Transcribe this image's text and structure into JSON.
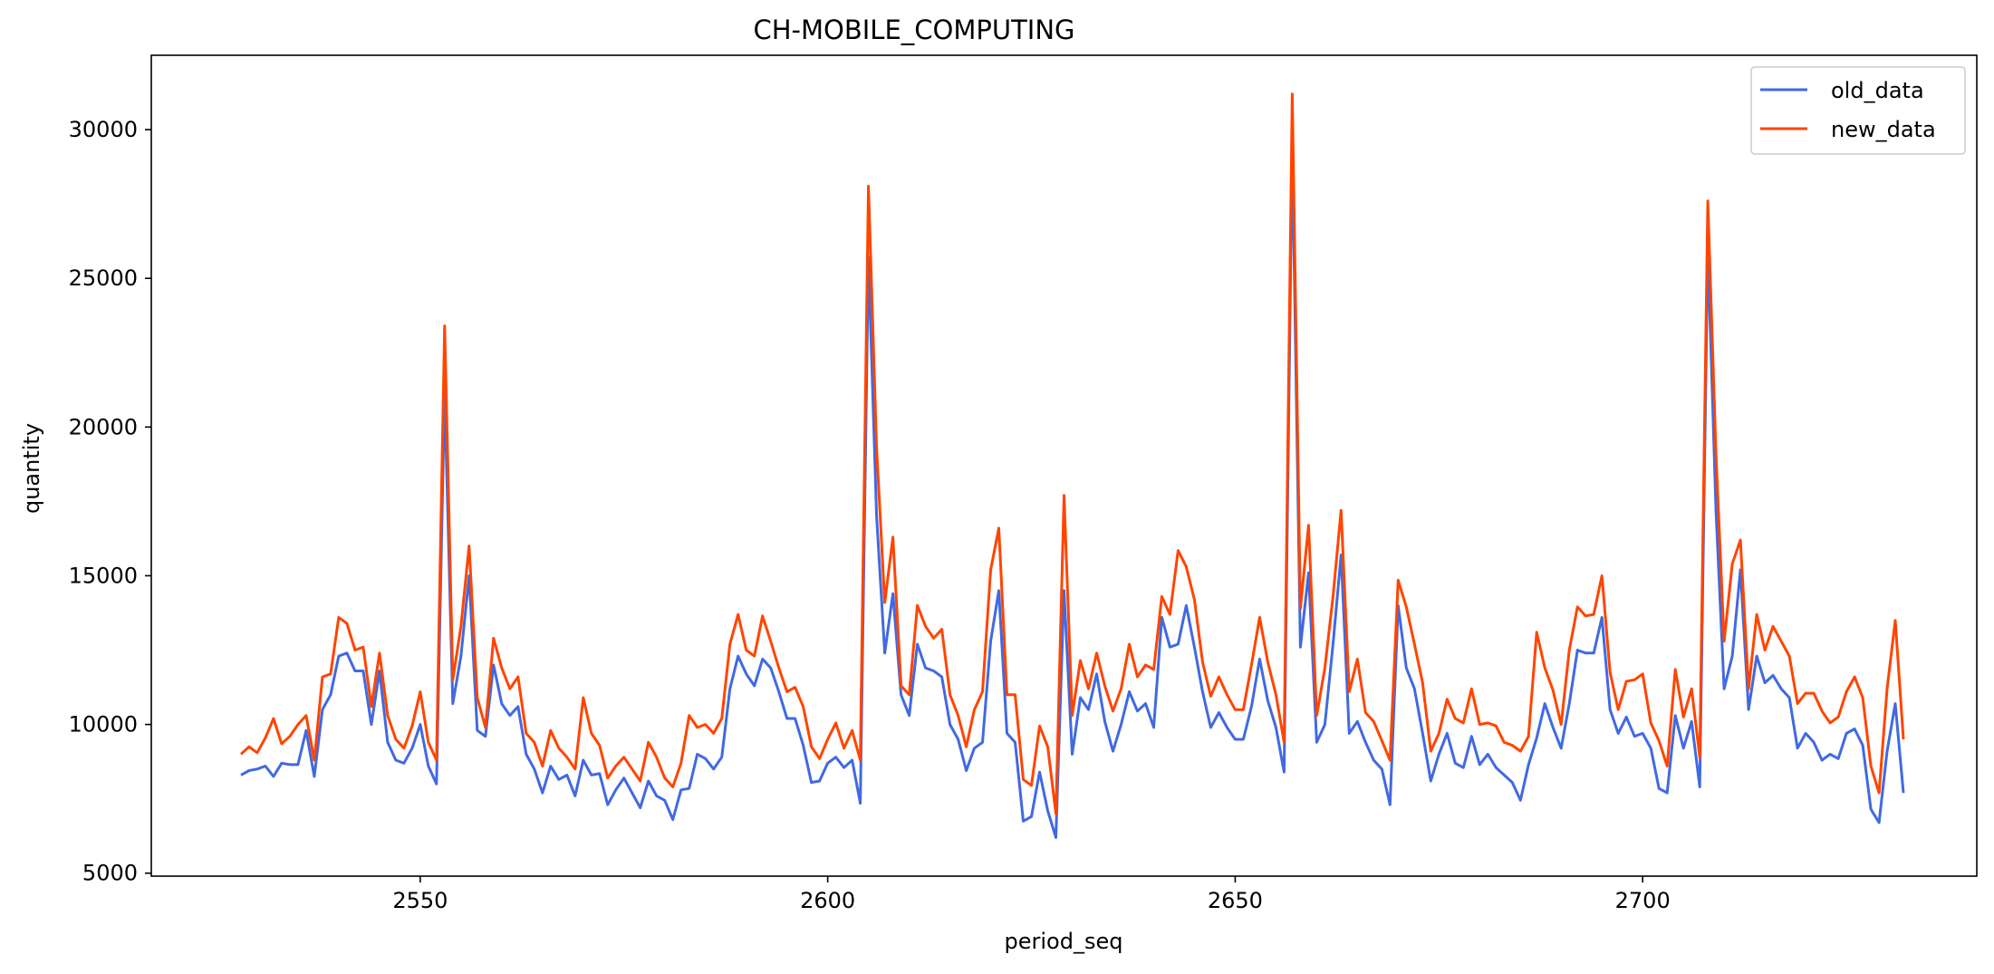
{
  "chart_data": {
    "type": "line",
    "title": "CH-MOBILE_COMPUTING",
    "xlabel": "period_seq",
    "ylabel": "quantity",
    "xlim": [
      2517,
      2741
    ],
    "ylim": [
      4900,
      32500
    ],
    "xticks": [
      2550,
      2600,
      2650,
      2700
    ],
    "yticks": [
      5000,
      10000,
      15000,
      20000,
      25000,
      30000
    ],
    "legend_position": "top-right",
    "grid": false,
    "x_start": 2528,
    "series": [
      {
        "name": "old_data",
        "color": "#4169e1",
        "values": [
          8300,
          8450,
          8500,
          8600,
          8250,
          8700,
          8650,
          8650,
          9800,
          8250,
          10500,
          11000,
          12300,
          12400,
          11800,
          11800,
          10000,
          11800,
          9400,
          8800,
          8700,
          9200,
          10000,
          8600,
          8000,
          21200,
          10700,
          12300,
          15000,
          9800,
          9600,
          12000,
          10700,
          10300,
          10600,
          9000,
          8500,
          7700,
          8600,
          8150,
          8300,
          7600,
          8800,
          8300,
          8350,
          7300,
          7800,
          8200,
          7700,
          7200,
          8100,
          7600,
          7450,
          6800,
          7800,
          7850,
          9000,
          8850,
          8500,
          8900,
          11200,
          12300,
          11700,
          11300,
          12200,
          11900,
          11100,
          10200,
          10200,
          9300,
          8050,
          8100,
          8700,
          8900,
          8550,
          8800,
          7350,
          25700,
          17000,
          12400,
          14400,
          11000,
          10300,
          12700,
          11900,
          11800,
          11600,
          10000,
          9500,
          8450,
          9200,
          9400,
          12800,
          14500,
          9700,
          9400,
          6750,
          6900,
          8400,
          7100,
          6200,
          14500,
          9000,
          10900,
          10500,
          11700,
          10100,
          9100,
          10000,
          11100,
          10450,
          10700,
          9900,
          13600,
          12600,
          12700,
          14000,
          12600,
          11100,
          9900,
          10400,
          9900,
          9500,
          9500,
          10600,
          12200,
          10800,
          9900,
          8400,
          29500,
          12600,
          15100,
          9400,
          10000,
          12700,
          15700,
          9700,
          10100,
          9400,
          8800,
          8500,
          7300,
          14000,
          11900,
          11200,
          9700,
          8100,
          9000,
          9700,
          8700,
          8550,
          9600,
          8650,
          9000,
          8550,
          8300,
          8050,
          7450,
          8650,
          9550,
          10700,
          9900,
          9200,
          10700,
          12500,
          12400,
          12400,
          13600,
          10500,
          9700,
          10250,
          9600,
          9700,
          9200,
          7850,
          7700,
          10300,
          9200,
          10100,
          7900,
          26000,
          17200,
          11200,
          12300,
          15200,
          10500,
          12300,
          11400,
          11650,
          11200,
          10900,
          9200,
          9700,
          9400,
          8800,
          9000,
          8850,
          9700,
          9850,
          9300,
          7150,
          6700,
          9100,
          10700,
          7700
        ]
      },
      {
        "name": "new_data",
        "color": "#ff4500",
        "values": [
          9000,
          9250,
          9050,
          9550,
          10200,
          9350,
          9600,
          10000,
          10300,
          8800,
          11600,
          11700,
          13600,
          13400,
          12500,
          12600,
          10600,
          12400,
          10300,
          9500,
          9200,
          9950,
          11100,
          9400,
          8800,
          23400,
          11500,
          13300,
          16000,
          10900,
          9900,
          12900,
          11900,
          11200,
          11600,
          9700,
          9400,
          8600,
          9800,
          9200,
          8900,
          8500,
          10900,
          9700,
          9300,
          8200,
          8600,
          8900,
          8500,
          8100,
          9400,
          8900,
          8200,
          7900,
          8700,
          10300,
          9900,
          10000,
          9700,
          10200,
          12700,
          13700,
          12500,
          12300,
          13650,
          12800,
          11900,
          11100,
          11250,
          10600,
          9250,
          8850,
          9500,
          10050,
          9200,
          9800,
          8800,
          28100,
          19300,
          14100,
          16300,
          11300,
          11000,
          14000,
          13300,
          12900,
          13200,
          11000,
          10300,
          9250,
          10500,
          11100,
          15200,
          16600,
          11000,
          11000,
          8150,
          7950,
          9950,
          9250,
          7000,
          17700,
          10300,
          12150,
          11200,
          12400,
          11300,
          10450,
          11200,
          12700,
          11600,
          12000,
          11850,
          14300,
          13700,
          15850,
          15300,
          14200,
          12100,
          10950,
          11600,
          11000,
          10500,
          10500,
          12000,
          13600,
          12100,
          11000,
          9400,
          31200,
          13900,
          16700,
          10300,
          11900,
          14300,
          17200,
          11100,
          12200,
          10400,
          10100,
          9450,
          8800,
          14850,
          13950,
          12700,
          11400,
          9100,
          9700,
          10850,
          10200,
          10050,
          11200,
          10000,
          10050,
          9950,
          9400,
          9300,
          9100,
          9600,
          13100,
          11900,
          11150,
          10000,
          12500,
          13950,
          13650,
          13700,
          15000,
          11750,
          10500,
          11450,
          11500,
          11700,
          10050,
          9450,
          8600,
          11850,
          10250,
          11200,
          8900,
          27600,
          19100,
          12800,
          15400,
          16200,
          11200,
          13700,
          12500,
          13300,
          12800,
          12300,
          10700,
          11050,
          11050,
          10450,
          10050,
          10250,
          11100,
          11600,
          10900,
          8600,
          7700,
          11200,
          13500,
          9500
        ]
      }
    ]
  }
}
